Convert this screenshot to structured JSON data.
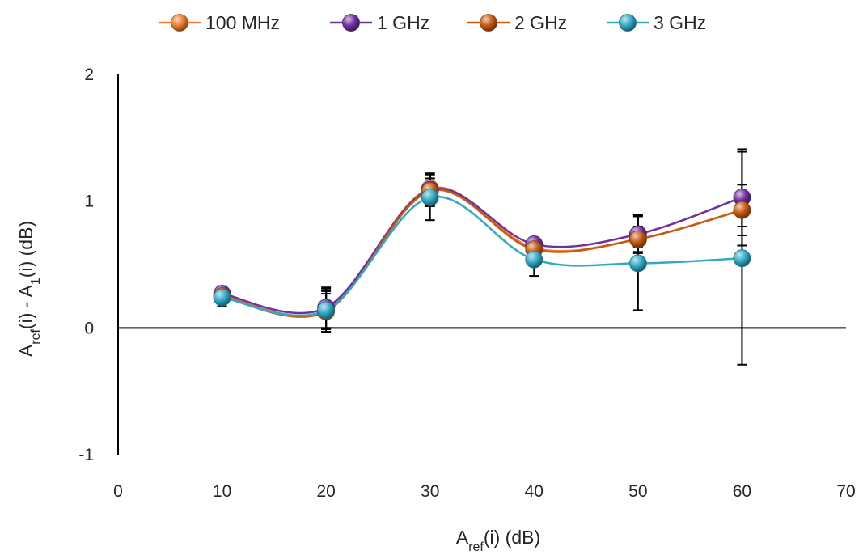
{
  "chart_data": {
    "type": "line",
    "title": "",
    "xlabel": {
      "main": "A",
      "sub": "ref",
      "rest": "(i) (dB)"
    },
    "ylabel": {
      "main1": "A",
      "sub1": "ref",
      "mid": "(i) - A",
      "sub2": "1",
      "rest": "(i)  (dB)"
    },
    "xlim": [
      0,
      70
    ],
    "ylim": [
      -1,
      2
    ],
    "xticks": [
      0,
      10,
      20,
      30,
      40,
      50,
      60,
      70
    ],
    "yticks": [
      -1,
      0,
      1,
      2
    ],
    "grid": false,
    "legend_position": "top",
    "x": [
      10,
      20,
      30,
      40,
      50,
      60
    ],
    "series": [
      {
        "name": "100 MHz",
        "color": "#ed7d31",
        "values": [
          0.26,
          0.14,
          1.1,
          0.63,
          0.7,
          0.93
        ],
        "err": [
          0.06,
          0.15,
          0.08,
          0.06,
          0.06,
          0.13
        ]
      },
      {
        "name": "1 GHz",
        "color": "#7030a0",
        "values": [
          0.27,
          0.16,
          1.09,
          0.66,
          0.74,
          1.03
        ],
        "err": [
          0.06,
          0.16,
          0.13,
          0.04,
          0.15,
          0.38
        ]
      },
      {
        "name": "2 GHz",
        "color": "#c55a11",
        "values": [
          0.25,
          0.13,
          1.08,
          0.62,
          0.7,
          0.93
        ],
        "err": [
          0.06,
          0.14,
          0.1,
          0.05,
          0.1,
          0.2
        ]
      },
      {
        "name": "3 GHz",
        "color": "#31a9c6",
        "values": [
          0.24,
          0.14,
          1.03,
          0.54,
          0.51,
          0.55
        ],
        "err": [
          0.07,
          0.17,
          0.18,
          0.13,
          0.37,
          0.84
        ]
      }
    ]
  }
}
